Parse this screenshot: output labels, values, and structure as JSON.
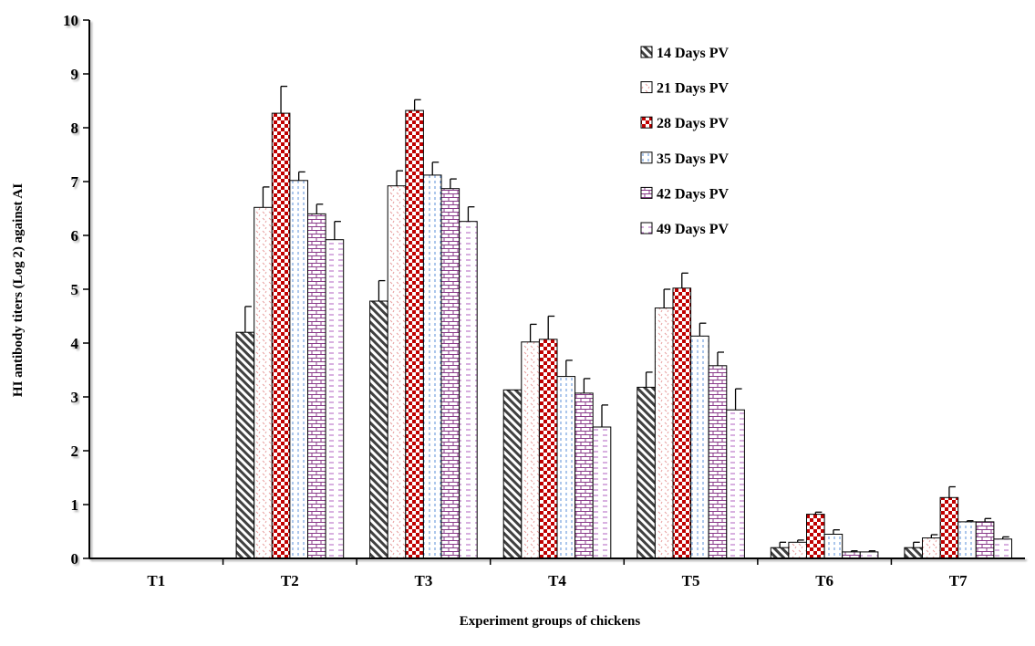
{
  "chart_data": {
    "type": "bar",
    "xlabel": "Experiment groups of chickens",
    "ylabel": "HI antibody titers (Log 2) against AI",
    "ylim": [
      0,
      10
    ],
    "yticks": [
      0,
      1,
      2,
      3,
      4,
      5,
      6,
      7,
      8,
      9,
      10
    ],
    "categories": [
      "T1",
      "T2",
      "T3",
      "T4",
      "T5",
      "T6",
      "T7"
    ],
    "legend_position": "top-right",
    "grid": false,
    "error_bars": true,
    "series": [
      {
        "name": "14 Days PV",
        "color": "#404040",
        "pattern": "diagonal-stripes",
        "values": [
          0,
          4.2,
          4.78,
          3.13,
          3.18,
          0.2,
          0.2
        ],
        "errors": [
          0,
          0.48,
          0.38,
          0,
          0.28,
          0.1,
          0.1
        ]
      },
      {
        "name": "21 Days PV",
        "color": "#e8a0a0",
        "pattern": "dotted",
        "values": [
          0,
          6.52,
          6.92,
          4.02,
          4.65,
          0.3,
          0.38
        ],
        "errors": [
          0,
          0.38,
          0.28,
          0.33,
          0.35,
          0.04,
          0.06
        ]
      },
      {
        "name": "28 Days PV",
        "color": "#c00000",
        "pattern": "checkerboard",
        "values": [
          0,
          8.27,
          8.32,
          4.07,
          5.02,
          0.82,
          1.13
        ],
        "errors": [
          0,
          0.5,
          0.2,
          0.43,
          0.28,
          0.04,
          0.2
        ]
      },
      {
        "name": "35 Days PV",
        "color": "#5a8fd8",
        "pattern": "dashed-vertical",
        "values": [
          0,
          7.02,
          7.12,
          3.38,
          4.13,
          0.45,
          0.68
        ],
        "errors": [
          0,
          0.16,
          0.24,
          0.3,
          0.24,
          0.08,
          0.02
        ]
      },
      {
        "name": "42 Days PV",
        "color": "#8a3a8a",
        "pattern": "brick",
        "values": [
          0,
          6.4,
          6.87,
          3.07,
          3.58,
          0.12,
          0.68
        ],
        "errors": [
          0,
          0.18,
          0.18,
          0.27,
          0.25,
          0.02,
          0.06
        ]
      },
      {
        "name": "49 Days PV",
        "color": "#b060c0",
        "pattern": "horizontal-dashes",
        "values": [
          0,
          5.92,
          6.26,
          2.44,
          2.76,
          0.12,
          0.36
        ],
        "errors": [
          0,
          0.34,
          0.27,
          0.41,
          0.39,
          0.02,
          0.04
        ]
      }
    ]
  }
}
